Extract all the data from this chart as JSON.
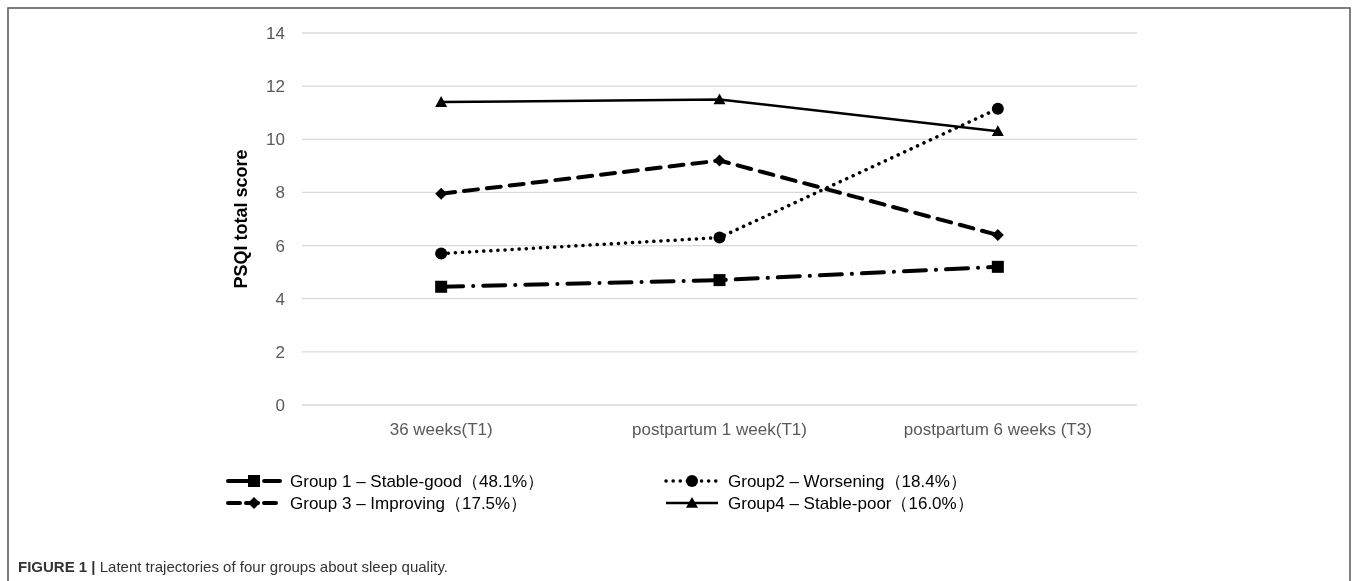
{
  "chart_data": {
    "type": "line",
    "ylabel": "PSQI total score",
    "categories": [
      "36 weeks(T1)",
      "postpartum 1 week(T1)",
      "postpartum 6 weeks (T3)"
    ],
    "series": [
      {
        "name": "Group 1 – Stable-good（48.1%）",
        "color": "#000000",
        "values": [
          4.45,
          4.7,
          5.2
        ],
        "marker": "square",
        "line_style": "dashdot"
      },
      {
        "name": "Group2 – Worsening（18.4%）",
        "color": "#000000",
        "values": [
          5.7,
          6.3,
          11.15
        ],
        "marker": "circle",
        "line_style": "dotted"
      },
      {
        "name": "Group 3 – Improving（17.5%）",
        "color": "#000000",
        "values": [
          7.95,
          9.2,
          6.4
        ],
        "marker": "diamond",
        "line_style": "dashed"
      },
      {
        "name": "Group4 – Stable-poor（16.0%）",
        "color": "#000000",
        "values": [
          11.4,
          11.5,
          10.3
        ],
        "marker": "triangle",
        "line_style": "solid"
      }
    ],
    "ylim": [
      0,
      14
    ],
    "yticks": [
      0,
      2,
      4,
      6,
      8,
      10,
      12,
      14
    ],
    "grid": "y",
    "legend": "bottom",
    "annotations": [
      "**FIGURE 1 |** Latent trajectories of four groups about sleep quality."
    ]
  }
}
